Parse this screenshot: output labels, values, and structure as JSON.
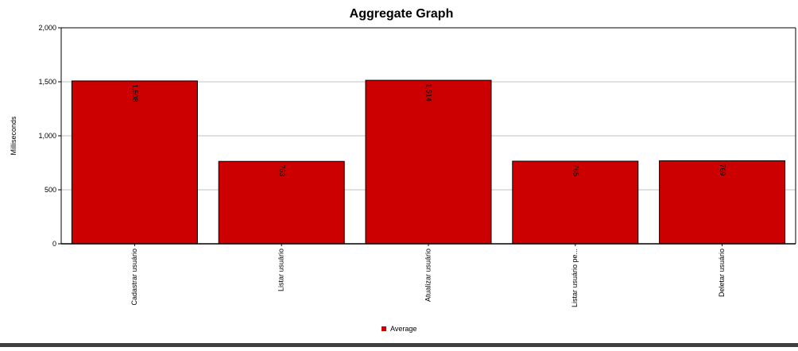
{
  "chart_data": {
    "type": "bar",
    "title": "Aggregate Graph",
    "ylabel": "Milliseconds",
    "xlabel": "",
    "categories": [
      "Cadastrar usuário",
      "Listar usuário",
      "Atualizar usuário",
      "Listar usuário pe...",
      "Deletar usuário"
    ],
    "series": [
      {
        "name": "Average",
        "values": [
          1508,
          763,
          1514,
          765,
          769
        ]
      }
    ],
    "value_labels": [
      "1,508",
      "763",
      "1,514",
      "765",
      "769"
    ],
    "ylim": [
      0,
      2000
    ],
    "yticks": [
      0,
      500,
      1000,
      1500,
      2000
    ],
    "ytick_labels": [
      "0",
      "500",
      "1,000",
      "1,500",
      "2,000"
    ],
    "grid": true,
    "legend_position": "bottom-center",
    "colors": {
      "bar": "#cc0000",
      "bar_edge": "#000000",
      "grid": "#c0c0c0",
      "axis": "#000000"
    }
  }
}
